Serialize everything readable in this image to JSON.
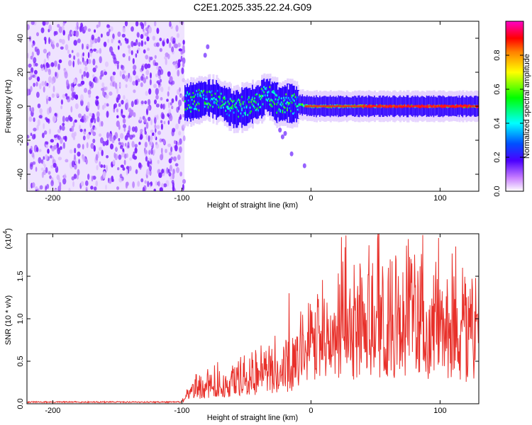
{
  "title": "C2E1.2025.335.22.24.G09",
  "chart_data": [
    {
      "type": "heatmap",
      "xlabel": "Height of straight line (km)",
      "ylabel": "Frequency (Hz)",
      "xlim": [
        -220,
        130
      ],
      "ylim": [
        -50,
        50
      ],
      "xticks": [
        -200,
        -100,
        0,
        100
      ],
      "yticks": [
        -40,
        -20,
        0,
        20,
        40
      ],
      "noise_region_km": [
        -220,
        -98
      ],
      "signal_start_km": -98,
      "centerline": {
        "x": [
          -98,
          -90,
          -80,
          -70,
          -60,
          -50,
          -40,
          -35,
          -30,
          -25,
          -20,
          -10,
          0,
          20,
          40,
          60,
          80,
          100,
          120,
          130
        ],
        "y": [
          2,
          3,
          5,
          3,
          -2,
          0,
          3,
          7,
          4,
          1,
          2,
          1,
          0,
          0,
          0,
          0,
          0,
          0,
          0,
          0
        ]
      },
      "colorbar": {
        "label": "Normalized spectral amplitude",
        "ticks": [
          0.0,
          0.2,
          0.4,
          0.6,
          0.8
        ],
        "range": [
          0,
          1
        ]
      }
    },
    {
      "type": "line",
      "xlabel": "Height of straight line (km)",
      "ylabel": "SNR (10 * v/v)",
      "scale_label": "(x10",
      "scale_exp": "4",
      "scale_close": ")",
      "xlim": [
        -220,
        130
      ],
      "ylim": [
        0,
        2.0
      ],
      "xticks": [
        -200,
        -100,
        0,
        100
      ],
      "yticks": [
        0.0,
        0.5,
        1.0,
        1.5
      ],
      "series": [
        {
          "name": "SNR",
          "color": "#e8302a",
          "x": [
            -220,
            -100,
            -98,
            -90,
            -80,
            -70,
            -60,
            -50,
            -40,
            -30,
            -20,
            -10,
            0,
            10,
            20,
            30,
            40,
            50,
            60,
            70,
            80,
            90,
            100,
            110,
            120,
            130
          ],
          "y": [
            0.02,
            0.02,
            0.05,
            0.15,
            0.18,
            0.2,
            0.22,
            0.25,
            0.3,
            0.35,
            0.35,
            0.45,
            0.55,
            0.7,
            0.75,
            0.8,
            0.85,
            0.85,
            0.85,
            0.85,
            0.85,
            0.8,
            0.8,
            0.75,
            0.7,
            0.7
          ]
        }
      ],
      "peaks": [
        {
          "x": -28,
          "y": 0.8
        },
        {
          "x": -17,
          "y": 1.3
        },
        {
          "x": 27,
          "y": 1.98
        },
        {
          "x": 38,
          "y": 1.65
        },
        {
          "x": 60,
          "y": 1.6
        },
        {
          "x": 112,
          "y": 1.85
        },
        {
          "x": 130,
          "y": 1.5
        }
      ]
    }
  ]
}
